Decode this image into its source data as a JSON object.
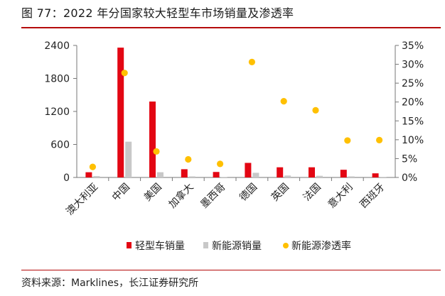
{
  "title": "图 77：2022 年分国家较大轻型车市场销量及渗透率",
  "source": "资料来源：Marklines，长江证券研究所",
  "colors": {
    "sales": "#e30613",
    "nev_sales": "#c8c8c8",
    "penetration": "#ffc000",
    "rule": "#b50b0b"
  },
  "chart_data": {
    "type": "bar",
    "categories": [
      "澳大利亚",
      "中国",
      "美国",
      "加拿大",
      "墨西哥",
      "德国",
      "英国",
      "法国",
      "意大利",
      "西班牙"
    ],
    "series": [
      {
        "name": "轻型车销量",
        "type": "bar",
        "axis": "left",
        "values": [
          95,
          2360,
          1380,
          150,
          100,
          265,
          185,
          185,
          140,
          75
        ]
      },
      {
        "name": "新能源销量",
        "type": "bar",
        "axis": "left",
        "values": [
          25,
          650,
          95,
          20,
          5,
          85,
          35,
          30,
          20,
          10
        ]
      },
      {
        "name": "新能源渗透率",
        "type": "scatter",
        "axis": "right",
        "values": [
          2.8,
          27.7,
          6.9,
          4.8,
          3.6,
          30.6,
          20.2,
          17.8,
          9.8,
          9.9
        ]
      }
    ],
    "y_left": {
      "min": 0,
      "max": 2400,
      "ticks": [
        "0",
        "600",
        "1200",
        "1800",
        "2400"
      ]
    },
    "y_right": {
      "min": 0,
      "max": 35,
      "ticks": [
        "0%",
        "5%",
        "10%",
        "15%",
        "20%",
        "25%",
        "30%",
        "35%"
      ]
    },
    "legend_position": "bottom"
  }
}
